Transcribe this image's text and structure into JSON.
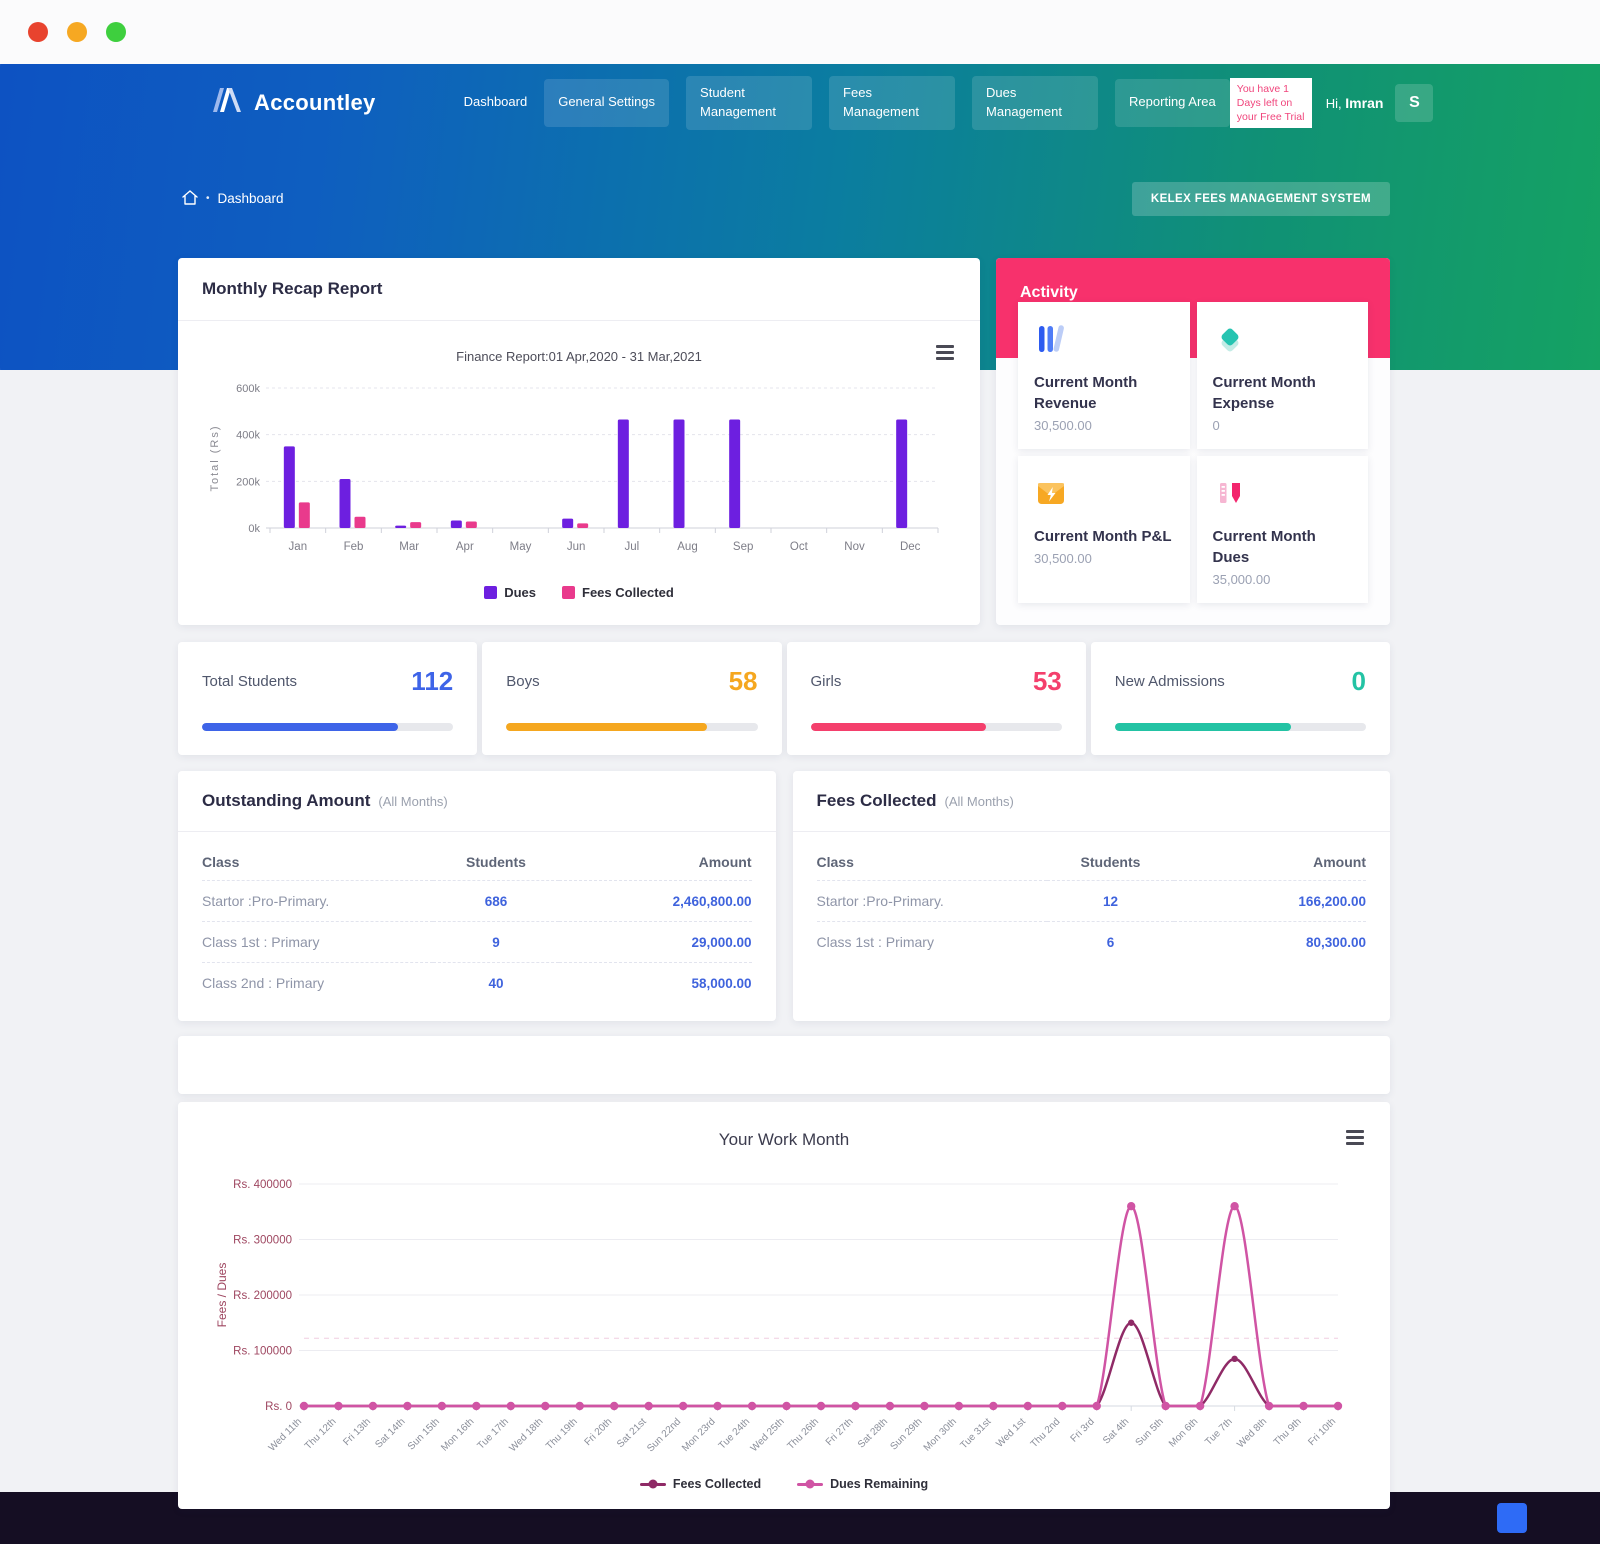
{
  "chrome": {
    "dot_colors": [
      "#e8432e",
      "#f6a822",
      "#3ecf3e"
    ]
  },
  "nav": {
    "brand": "Accountley",
    "items": [
      {
        "label": "Dashboard",
        "boxed": false
      },
      {
        "label": "General Settings",
        "boxed": true
      },
      {
        "label": "Student Management",
        "boxed": true
      },
      {
        "label": "Fees Management",
        "boxed": true
      },
      {
        "label": "Dues Management",
        "boxed": true
      },
      {
        "label": "Reporting Area",
        "boxed": true
      }
    ],
    "trial_notice": "You have 1 Days left on your Free Trial",
    "greeting_prefix": "Hi,",
    "user_name": "Imran",
    "user_initial": "S"
  },
  "breadcrumb": {
    "label": "Dashboard"
  },
  "system_button_label": "KELEX FEES MANAGEMENT SYSTEM",
  "recap": {
    "title": "Monthly Recap Report"
  },
  "activity": {
    "title": "Activity",
    "cards": [
      {
        "icon": "books-icon",
        "title": "Current Month Revenue",
        "value": "30,500.00"
      },
      {
        "icon": "layers-icon",
        "title": "Current Month Expense",
        "value": "0"
      },
      {
        "icon": "envelope-bolt-icon",
        "title": "Current Month P&L",
        "value": "30,500.00"
      },
      {
        "icon": "pen-ruler-icon",
        "title": "Current Month Dues",
        "value": "35,000.00"
      }
    ]
  },
  "stats": [
    {
      "label": "Total Students",
      "value": "112",
      "color": "#3e64e8",
      "percent": 78
    },
    {
      "label": "Boys",
      "value": "58",
      "color": "#f5a71f",
      "percent": 80
    },
    {
      "label": "Girls",
      "value": "53",
      "color": "#f43f6c",
      "percent": 70
    },
    {
      "label": "New Admissions",
      "value": "0",
      "color": "#23c3a4",
      "percent": 70
    }
  ],
  "tables": [
    {
      "title": "Outstanding Amount",
      "subtitle": "(All Months)",
      "columns": [
        "Class",
        "Students",
        "Amount"
      ],
      "rows": [
        [
          "Startor :Pro-Primary.",
          "686",
          "2,460,800.00"
        ],
        [
          "Class 1st : Primary",
          "9",
          "29,000.00"
        ],
        [
          "Class 2nd : Primary",
          "40",
          "58,000.00"
        ]
      ]
    },
    {
      "title": "Fees Collected",
      "subtitle": "(All Months)",
      "columns": [
        "Class",
        "Students",
        "Amount"
      ],
      "rows": [
        [
          "Startor :Pro-Primary.",
          "12",
          "166,200.00"
        ],
        [
          "Class 1st : Primary",
          "6",
          "80,300.00"
        ]
      ]
    }
  ],
  "chart_data": [
    {
      "type": "bar",
      "title": "Finance Report:01 Apr,2020 - 31 Mar,2021",
      "ylabel": "Total (Rs)",
      "categories": [
        "Jan",
        "Feb",
        "Mar",
        "Apr",
        "May",
        "Jun",
        "Jul",
        "Aug",
        "Sep",
        "Oct",
        "Nov",
        "Dec"
      ],
      "series": [
        {
          "name": "Dues",
          "color": "#6d1fe0",
          "values": [
            350000,
            210000,
            10000,
            32000,
            0,
            40000,
            465000,
            465000,
            465000,
            0,
            0,
            465000
          ]
        },
        {
          "name": "Fees Collected",
          "color": "#e93a8c",
          "values": [
            110000,
            48000,
            25000,
            28000,
            0,
            20000,
            0,
            0,
            0,
            0,
            0,
            0
          ]
        }
      ],
      "ylim": [
        0,
        600000
      ],
      "yticks": [
        0,
        200000,
        400000,
        600000
      ],
      "ytick_labels": [
        "0k",
        "200k",
        "400k",
        "600k"
      ],
      "grid": true,
      "legend_position": "bottom"
    },
    {
      "type": "line",
      "title": "Your Work Month",
      "ylabel": "Fees / Dues",
      "x": [
        "Wed 11th",
        "Thu 12th",
        "Fri 13th",
        "Sat 14th",
        "Sun 15th",
        "Mon 16th",
        "Tue 17th",
        "Wed 18th",
        "Thu 19th",
        "Fri 20th",
        "Sat 21st",
        "Sun 22nd",
        "Mon 23rd",
        "Tue 24th",
        "Wed 25th",
        "Thu 26th",
        "Fri 27th",
        "Sat 28th",
        "Sun 29th",
        "Mon 30th",
        "Tue 31st",
        "Wed 1st",
        "Thu 2nd",
        "Fri 3rd",
        "Sat 4th",
        "Sun 5th",
        "Mon 6th",
        "Tue 7th",
        "Wed 8th",
        "Thu 9th",
        "Fri 10th"
      ],
      "series": [
        {
          "name": "Fees Collected",
          "color": "#8f2a66",
          "values": [
            0,
            0,
            0,
            0,
            0,
            0,
            0,
            0,
            0,
            0,
            0,
            0,
            0,
            0,
            0,
            0,
            0,
            0,
            0,
            0,
            0,
            0,
            0,
            0,
            150000,
            0,
            0,
            85000,
            0,
            0,
            0
          ]
        },
        {
          "name": "Dues Remaining",
          "color": "#d054a4",
          "values": [
            0,
            0,
            0,
            0,
            0,
            0,
            0,
            0,
            0,
            0,
            0,
            0,
            0,
            0,
            0,
            0,
            0,
            0,
            0,
            0,
            0,
            0,
            0,
            0,
            360000,
            0,
            0,
            360000,
            0,
            0,
            0
          ]
        }
      ],
      "ylim": [
        0,
        400000
      ],
      "yticks": [
        0,
        100000,
        200000,
        300000,
        400000
      ],
      "ytick_prefix": "Rs. ",
      "dashed_guide": 122000,
      "grid": true,
      "legend_position": "bottom"
    }
  ]
}
